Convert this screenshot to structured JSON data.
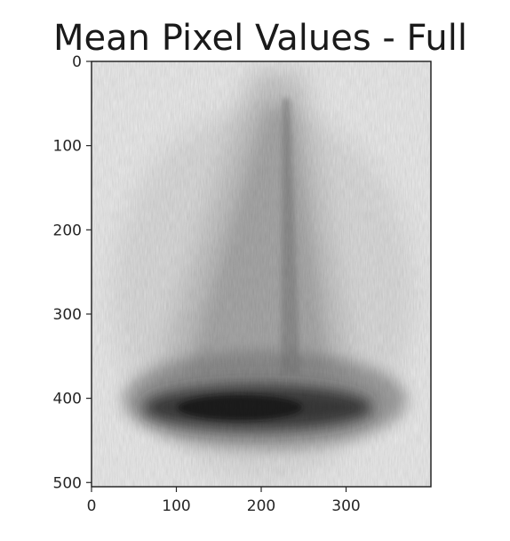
{
  "chart_data": {
    "type": "heatmap",
    "title": "Mean Pixel Values - Full",
    "colormap": "gray",
    "x_ticks": [
      0,
      100,
      200,
      300
    ],
    "y_ticks": [
      0,
      100,
      200,
      300,
      400,
      500
    ],
    "xlim": [
      0,
      400
    ],
    "ylim": [
      505,
      0
    ],
    "image_width": 400,
    "image_height": 505,
    "description_values": {
      "background_level": 0.92,
      "darkest_band_row": 410,
      "darkest_band_level": 0.15
    }
  }
}
